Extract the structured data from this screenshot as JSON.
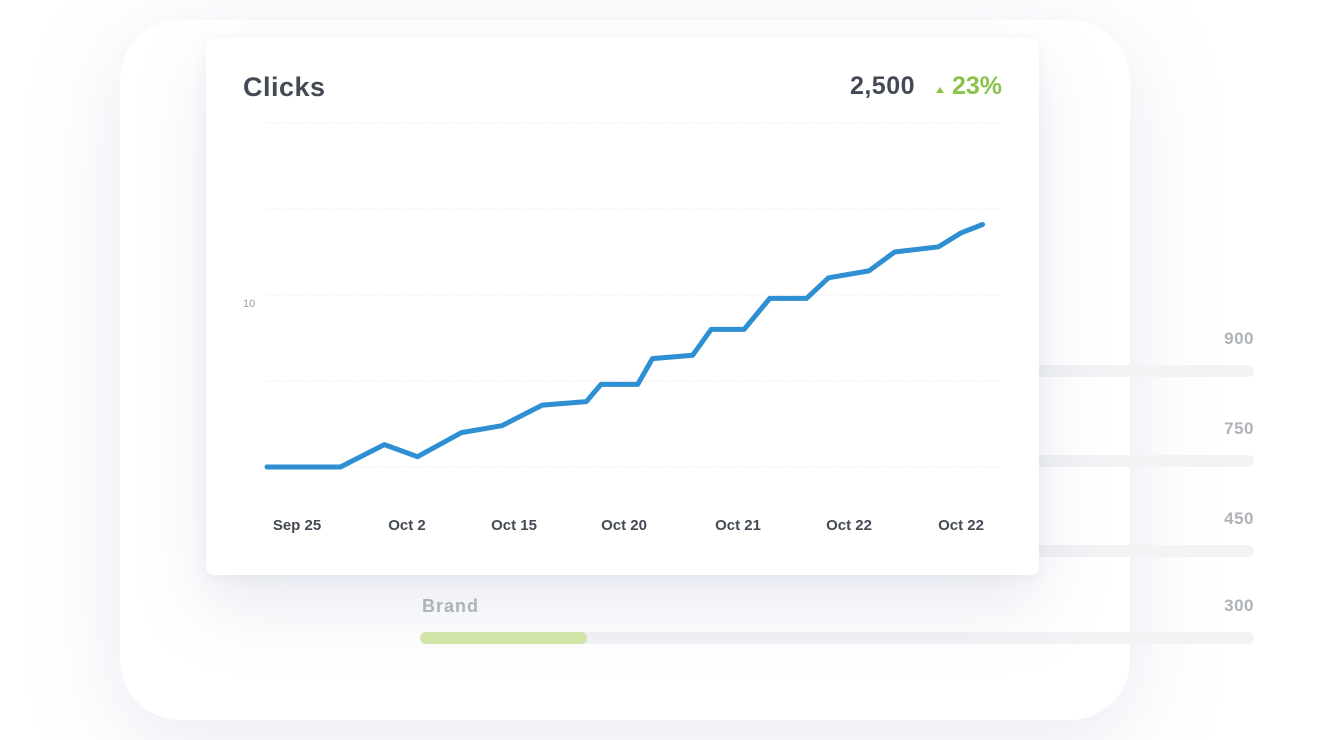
{
  "background_panel": {
    "rows": [
      {
        "name": "",
        "value": "900",
        "fill_fraction": 0
      },
      {
        "name": "",
        "value": "750",
        "fill_fraction": 0
      },
      {
        "name": "",
        "value": "450",
        "fill_fraction": 0
      },
      {
        "name": "Brand",
        "value": "300",
        "fill_fraction": 0.2
      }
    ]
  },
  "card": {
    "title": "Clicks",
    "total": "2,500",
    "change": "23%",
    "change_icon": "triangle-up-icon"
  },
  "colors": {
    "line": "#2e8fd3",
    "positive": "#8bc34a",
    "text_dark": "#444a55",
    "muted": "#aeb2b9",
    "bar_fill": "#d4e7a8"
  },
  "chart_data": {
    "type": "line",
    "title": "Clicks",
    "xlabel": "",
    "ylabel": "",
    "ylim": [
      0,
      20
    ],
    "y_tick_labels": [
      {
        "value": 10,
        "label": "10"
      }
    ],
    "x_tick_labels": [
      "Sep 25",
      "Oct 2",
      "Oct 15",
      "Oct 20",
      "Oct 21",
      "Oct 22",
      "Oct 22"
    ],
    "grid": true,
    "series": [
      {
        "values": [
          [
            0.0,
            0.0
          ],
          [
            1.0,
            0.0
          ],
          [
            1.6,
            1.3
          ],
          [
            2.05,
            0.6
          ],
          [
            2.65,
            2.0
          ],
          [
            3.2,
            2.4
          ],
          [
            3.75,
            3.6
          ],
          [
            4.35,
            3.8
          ],
          [
            4.55,
            4.8
          ],
          [
            5.05,
            4.8
          ],
          [
            5.25,
            6.3
          ],
          [
            5.8,
            6.5
          ],
          [
            6.05,
            8.0
          ],
          [
            6.5,
            8.0
          ],
          [
            6.85,
            9.8
          ],
          [
            7.35,
            9.8
          ],
          [
            7.65,
            11.0
          ],
          [
            8.2,
            11.4
          ],
          [
            8.55,
            12.5
          ],
          [
            9.15,
            12.8
          ],
          [
            9.45,
            13.6
          ],
          [
            9.75,
            14.1
          ]
        ]
      }
    ]
  }
}
